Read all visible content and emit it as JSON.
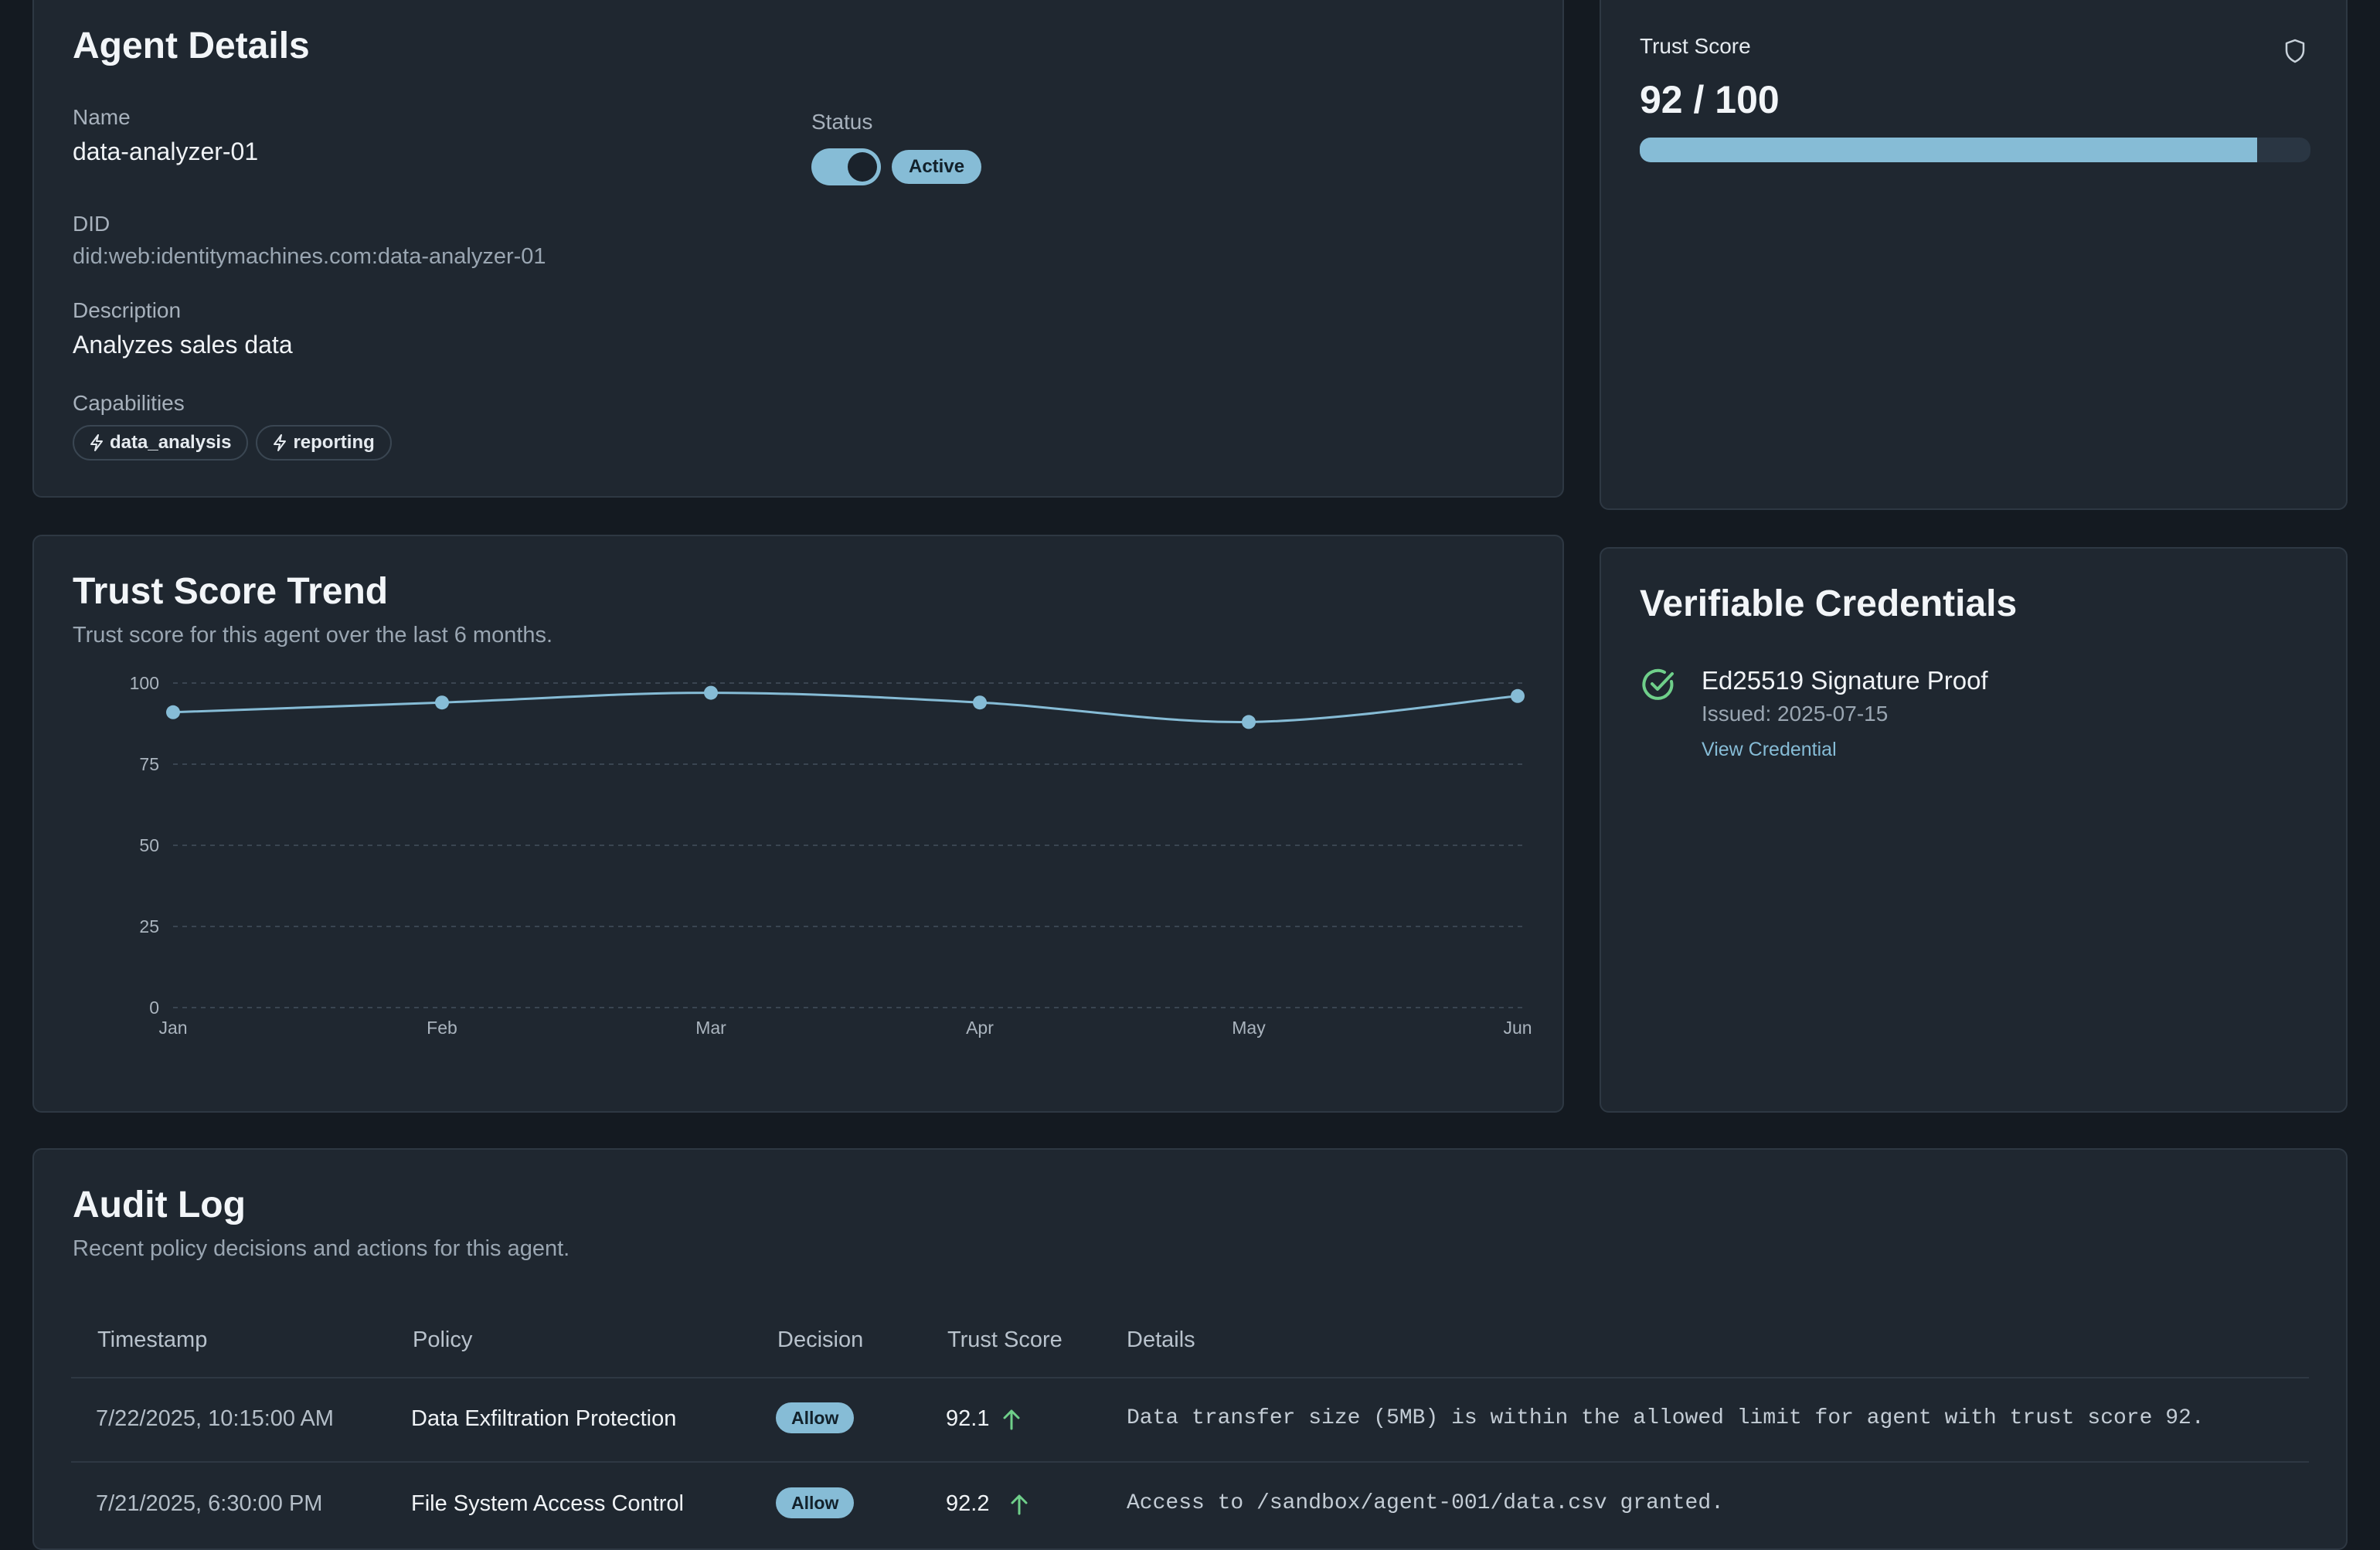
{
  "details": {
    "title": "Agent Details",
    "name_label": "Name",
    "name_value": "data-analyzer-01",
    "status_label": "Status",
    "status_value": "Active",
    "did_label": "DID",
    "did_value": "did:web:identitymachines.com:data-analyzer-01",
    "description_label": "Description",
    "description_value": "Analyzes sales data",
    "capabilities_label": "Capabilities",
    "capabilities": [
      "data_analysis",
      "reporting"
    ]
  },
  "trust": {
    "label": "Trust Score",
    "value_text": "92 / 100",
    "fraction": 0.92,
    "icon": "shield-icon"
  },
  "trend": {
    "title": "Trust Score Trend",
    "subtitle": "Trust score for this agent over the last 6 months."
  },
  "chart_data": {
    "type": "line",
    "categories": [
      "Jan",
      "Feb",
      "Mar",
      "Apr",
      "May",
      "Jun"
    ],
    "values": [
      91,
      94,
      97,
      94,
      88,
      96
    ],
    "ylim": [
      0,
      100
    ],
    "yticks": [
      0,
      25,
      50,
      75,
      100
    ],
    "grid": true,
    "color": "#86bcd6"
  },
  "credentials": {
    "title": "Verifiable Credentials",
    "item_name": "Ed25519 Signature Proof",
    "item_issued": "Issued: 2025-07-15",
    "item_link": "View Credential",
    "check_color": "#6fcf8a"
  },
  "audit": {
    "title": "Audit Log",
    "subtitle": "Recent policy decisions and actions for this agent.",
    "columns": [
      "Timestamp",
      "Policy",
      "Decision",
      "Trust Score",
      "Details"
    ],
    "rows": [
      {
        "timestamp": "7/22/2025, 10:15:00 AM",
        "policy": "Data Exfiltration Protection",
        "decision": "Allow",
        "score": "92.1",
        "details": "Data transfer size (5MB) is within the allowed limit for agent with trust score 92."
      },
      {
        "timestamp": "7/21/2025, 6:30:00 PM",
        "policy": "File System Access Control",
        "decision": "Allow",
        "score": "92.2",
        "details": "Access to /sandbox/agent-001/data.csv granted."
      }
    ]
  }
}
